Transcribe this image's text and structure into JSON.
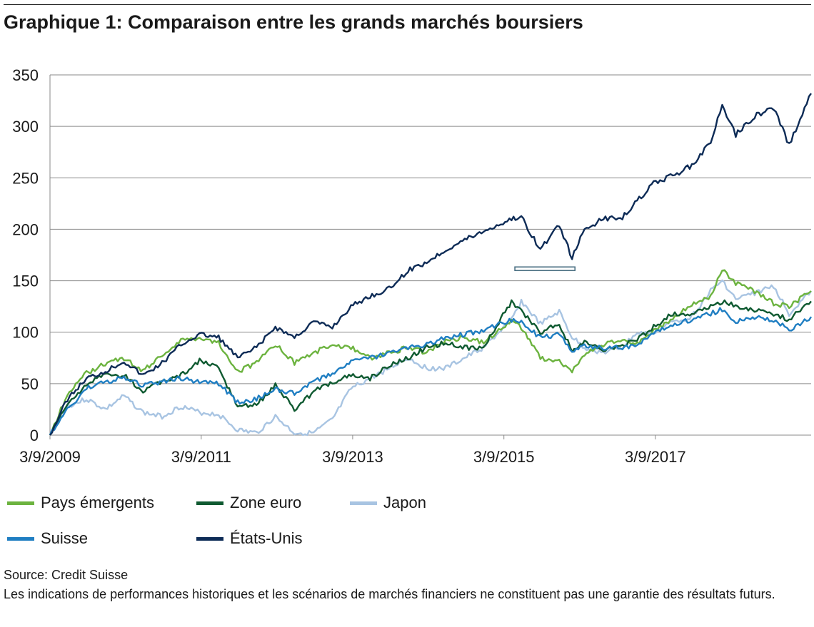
{
  "title": "Graphique 1: Comparaison entre les grands marchés boursiers",
  "source": "Source: Credit Suisse",
  "disclaimer": "Les indications de performances historiques et les scénarios de marchés financiers ne constituent pas une garantie des résultats futurs.",
  "chart_data": {
    "type": "line",
    "title": "Graphique 1: Comparaison entre les grands marchés boursiers",
    "xlabel": "",
    "ylabel": "",
    "x_range": [
      "2009-03-09",
      "2019-03-31"
    ],
    "x_ticks": [
      "3/9/2009",
      "3/9/2011",
      "3/9/2013",
      "3/9/2015",
      "3/9/2017"
    ],
    "x_tick_dates": [
      "2009-03-09",
      "2011-03-09",
      "2013-03-09",
      "2015-03-09",
      "2017-03-09"
    ],
    "ylim": [
      0,
      350
    ],
    "y_ticks": [
      0,
      50,
      100,
      150,
      200,
      250,
      300,
      350
    ],
    "grid": "horizontal",
    "legend_position": "bottom",
    "series": [
      {
        "name": "Pays émergents",
        "color": "#6cb33f",
        "points": [
          [
            "2009-03-09",
            0
          ],
          [
            "2009-06-01",
            40
          ],
          [
            "2009-09-01",
            60
          ],
          [
            "2009-12-01",
            70
          ],
          [
            "2010-03-01",
            75
          ],
          [
            "2010-06-01",
            62
          ],
          [
            "2010-09-01",
            78
          ],
          [
            "2010-12-01",
            92
          ],
          [
            "2011-03-01",
            95
          ],
          [
            "2011-06-01",
            90
          ],
          [
            "2011-09-01",
            62
          ],
          [
            "2011-12-01",
            70
          ],
          [
            "2012-03-01",
            88
          ],
          [
            "2012-06-01",
            70
          ],
          [
            "2012-09-01",
            80
          ],
          [
            "2012-12-01",
            88
          ],
          [
            "2013-03-01",
            85
          ],
          [
            "2013-06-01",
            75
          ],
          [
            "2013-09-01",
            80
          ],
          [
            "2013-12-01",
            85
          ],
          [
            "2014-03-01",
            80
          ],
          [
            "2014-06-01",
            92
          ],
          [
            "2014-09-01",
            95
          ],
          [
            "2014-12-01",
            90
          ],
          [
            "2015-04-15",
            112
          ],
          [
            "2015-06-01",
            105
          ],
          [
            "2015-09-01",
            75
          ],
          [
            "2015-12-01",
            72
          ],
          [
            "2016-02-01",
            62
          ],
          [
            "2016-04-01",
            78
          ],
          [
            "2016-07-01",
            88
          ],
          [
            "2016-10-01",
            92
          ],
          [
            "2016-12-01",
            88
          ],
          [
            "2017-03-01",
            102
          ],
          [
            "2017-06-01",
            112
          ],
          [
            "2017-09-01",
            128
          ],
          [
            "2017-12-01",
            135
          ],
          [
            "2018-01-26",
            160
          ],
          [
            "2018-04-01",
            148
          ],
          [
            "2018-07-01",
            140
          ],
          [
            "2018-10-01",
            128
          ],
          [
            "2018-12-15",
            125
          ],
          [
            "2019-03-31",
            140
          ]
        ]
      },
      {
        "name": "Zone euro",
        "color": "#0f5a31",
        "points": [
          [
            "2009-03-09",
            0
          ],
          [
            "2009-06-01",
            30
          ],
          [
            "2009-09-01",
            50
          ],
          [
            "2009-12-01",
            58
          ],
          [
            "2010-03-01",
            58
          ],
          [
            "2010-06-01",
            42
          ],
          [
            "2010-09-01",
            52
          ],
          [
            "2010-12-01",
            58
          ],
          [
            "2011-03-01",
            72
          ],
          [
            "2011-06-01",
            65
          ],
          [
            "2011-09-01",
            28
          ],
          [
            "2011-12-01",
            30
          ],
          [
            "2012-03-01",
            48
          ],
          [
            "2012-06-01",
            25
          ],
          [
            "2012-09-01",
            42
          ],
          [
            "2012-12-01",
            52
          ],
          [
            "2013-03-01",
            58
          ],
          [
            "2013-06-01",
            55
          ],
          [
            "2013-09-01",
            68
          ],
          [
            "2013-12-01",
            75
          ],
          [
            "2014-03-01",
            85
          ],
          [
            "2014-06-01",
            90
          ],
          [
            "2014-09-01",
            85
          ],
          [
            "2014-12-01",
            85
          ],
          [
            "2015-04-15",
            130
          ],
          [
            "2015-06-01",
            120
          ],
          [
            "2015-09-01",
            100
          ],
          [
            "2015-12-01",
            108
          ],
          [
            "2016-02-01",
            82
          ],
          [
            "2016-04-01",
            90
          ],
          [
            "2016-07-01",
            82
          ],
          [
            "2016-10-01",
            88
          ],
          [
            "2016-12-01",
            92
          ],
          [
            "2017-03-01",
            105
          ],
          [
            "2017-06-01",
            118
          ],
          [
            "2017-09-01",
            118
          ],
          [
            "2017-12-01",
            125
          ],
          [
            "2018-01-26",
            130
          ],
          [
            "2018-04-01",
            125
          ],
          [
            "2018-07-01",
            122
          ],
          [
            "2018-10-01",
            118
          ],
          [
            "2018-12-15",
            112
          ],
          [
            "2019-03-31",
            130
          ]
        ]
      },
      {
        "name": "Japon",
        "color": "#a8c4e2",
        "points": [
          [
            "2009-03-09",
            0
          ],
          [
            "2009-06-01",
            28
          ],
          [
            "2009-09-01",
            35
          ],
          [
            "2009-12-01",
            25
          ],
          [
            "2010-03-01",
            38
          ],
          [
            "2010-06-01",
            22
          ],
          [
            "2010-09-01",
            18
          ],
          [
            "2010-12-01",
            28
          ],
          [
            "2011-03-01",
            22
          ],
          [
            "2011-06-01",
            20
          ],
          [
            "2011-09-01",
            5
          ],
          [
            "2011-12-01",
            2
          ],
          [
            "2012-03-01",
            18
          ],
          [
            "2012-06-01",
            2
          ],
          [
            "2012-09-01",
            2
          ],
          [
            "2012-12-01",
            15
          ],
          [
            "2013-03-01",
            45
          ],
          [
            "2013-06-01",
            55
          ],
          [
            "2013-09-01",
            65
          ],
          [
            "2013-12-01",
            75
          ],
          [
            "2014-03-01",
            65
          ],
          [
            "2014-06-01",
            65
          ],
          [
            "2014-09-01",
            75
          ],
          [
            "2014-12-01",
            85
          ],
          [
            "2015-04-15",
            112
          ],
          [
            "2015-06-01",
            130
          ],
          [
            "2015-09-01",
            108
          ],
          [
            "2015-12-01",
            120
          ],
          [
            "2016-02-01",
            95
          ],
          [
            "2016-04-01",
            85
          ],
          [
            "2016-07-01",
            80
          ],
          [
            "2016-10-01",
            85
          ],
          [
            "2016-12-01",
            98
          ],
          [
            "2017-03-01",
            100
          ],
          [
            "2017-06-01",
            110
          ],
          [
            "2017-09-01",
            115
          ],
          [
            "2017-12-01",
            140
          ],
          [
            "2018-01-26",
            150
          ],
          [
            "2018-04-01",
            132
          ],
          [
            "2018-07-01",
            138
          ],
          [
            "2018-10-01",
            145
          ],
          [
            "2018-12-15",
            118
          ],
          [
            "2019-03-31",
            140
          ]
        ]
      },
      {
        "name": "Suisse",
        "color": "#1f7ec2",
        "points": [
          [
            "2009-03-09",
            0
          ],
          [
            "2009-06-01",
            25
          ],
          [
            "2009-09-01",
            45
          ],
          [
            "2009-12-01",
            52
          ],
          [
            "2010-03-01",
            55
          ],
          [
            "2010-06-01",
            48
          ],
          [
            "2010-09-01",
            52
          ],
          [
            "2010-12-01",
            55
          ],
          [
            "2011-03-01",
            52
          ],
          [
            "2011-06-01",
            50
          ],
          [
            "2011-09-01",
            32
          ],
          [
            "2011-12-01",
            35
          ],
          [
            "2012-03-01",
            45
          ],
          [
            "2012-06-01",
            40
          ],
          [
            "2012-09-01",
            52
          ],
          [
            "2012-12-01",
            60
          ],
          [
            "2013-03-01",
            72
          ],
          [
            "2013-06-01",
            75
          ],
          [
            "2013-09-01",
            80
          ],
          [
            "2013-12-01",
            85
          ],
          [
            "2014-03-01",
            88
          ],
          [
            "2014-06-01",
            95
          ],
          [
            "2014-09-01",
            98
          ],
          [
            "2014-12-01",
            102
          ],
          [
            "2015-04-15",
            112
          ],
          [
            "2015-06-01",
            110
          ],
          [
            "2015-09-01",
            95
          ],
          [
            "2015-12-01",
            98
          ],
          [
            "2016-02-01",
            82
          ],
          [
            "2016-04-01",
            86
          ],
          [
            "2016-07-01",
            85
          ],
          [
            "2016-10-01",
            85
          ],
          [
            "2016-12-01",
            88
          ],
          [
            "2017-03-01",
            98
          ],
          [
            "2017-06-01",
            108
          ],
          [
            "2017-09-01",
            112
          ],
          [
            "2017-12-01",
            118
          ],
          [
            "2018-01-26",
            122
          ],
          [
            "2018-04-01",
            110
          ],
          [
            "2018-07-01",
            115
          ],
          [
            "2018-10-01",
            112
          ],
          [
            "2018-12-15",
            102
          ],
          [
            "2019-03-31",
            115
          ]
        ]
      },
      {
        "name": "États-Unis",
        "color": "#0d2b56",
        "points": [
          [
            "2009-03-09",
            0
          ],
          [
            "2009-06-01",
            35
          ],
          [
            "2009-09-01",
            55
          ],
          [
            "2009-12-01",
            62
          ],
          [
            "2010-03-01",
            72
          ],
          [
            "2010-06-01",
            58
          ],
          [
            "2010-09-01",
            70
          ],
          [
            "2010-12-01",
            88
          ],
          [
            "2011-03-01",
            98
          ],
          [
            "2011-06-01",
            95
          ],
          [
            "2011-09-01",
            75
          ],
          [
            "2011-12-01",
            85
          ],
          [
            "2012-03-01",
            105
          ],
          [
            "2012-06-01",
            95
          ],
          [
            "2012-09-01",
            110
          ],
          [
            "2012-12-01",
            105
          ],
          [
            "2013-03-01",
            125
          ],
          [
            "2013-06-01",
            135
          ],
          [
            "2013-09-01",
            142
          ],
          [
            "2013-12-01",
            160
          ],
          [
            "2014-03-01",
            168
          ],
          [
            "2014-06-01",
            180
          ],
          [
            "2014-09-01",
            190
          ],
          [
            "2014-12-01",
            198
          ],
          [
            "2015-04-15",
            210
          ],
          [
            "2015-06-01",
            212
          ],
          [
            "2015-09-01",
            180
          ],
          [
            "2015-12-01",
            205
          ],
          [
            "2016-02-01",
            172
          ],
          [
            "2016-04-01",
            200
          ],
          [
            "2016-07-01",
            210
          ],
          [
            "2016-10-01",
            212
          ],
          [
            "2016-12-01",
            225
          ],
          [
            "2017-03-01",
            245
          ],
          [
            "2017-06-01",
            252
          ],
          [
            "2017-09-01",
            262
          ],
          [
            "2017-12-01",
            285
          ],
          [
            "2018-01-26",
            320
          ],
          [
            "2018-04-01",
            292
          ],
          [
            "2018-07-01",
            310
          ],
          [
            "2018-10-01",
            318
          ],
          [
            "2018-12-15",
            282
          ],
          [
            "2019-03-31",
            332
          ]
        ]
      }
    ],
    "annotations": [
      {
        "type": "bracket",
        "x_start": "2015-05-01",
        "x_end": "2016-02-15",
        "y": 162,
        "color": "#4a6f82"
      }
    ]
  }
}
